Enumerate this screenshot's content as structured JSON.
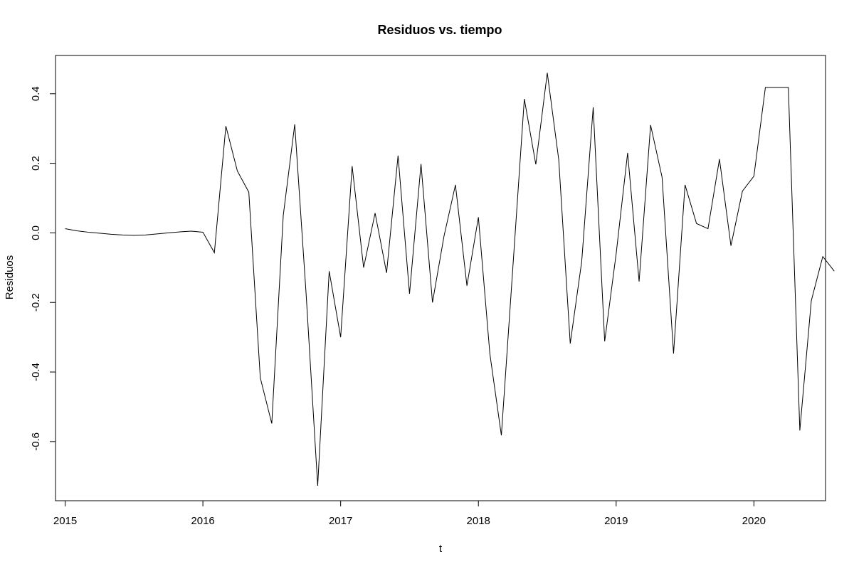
{
  "chart_data": {
    "type": "line",
    "title": "Residuos vs. tiempo",
    "xlabel": "t",
    "ylabel": "Residuos",
    "xlim": [
      2014.93,
      2020.52
    ],
    "ylim": [
      -0.77,
      0.51
    ],
    "x_ticks": [
      2015,
      2016,
      2017,
      2018,
      2019,
      2020
    ],
    "x_tick_labels": [
      "2015",
      "2016",
      "2017",
      "2018",
      "2019",
      "2020"
    ],
    "y_ticks": [
      -0.6,
      -0.4,
      -0.2,
      0.0,
      0.2,
      0.4
    ],
    "y_tick_labels": [
      "-0.6",
      "-0.4",
      "-0.2",
      "0.0",
      "0.2",
      "0.4"
    ],
    "grid": false,
    "legend": "none",
    "line_color": "#000000",
    "x_start": 2015,
    "x_step_months": 1,
    "series": [
      {
        "values": [
          0.012,
          0.006,
          0.002,
          -0.001,
          -0.004,
          -0.006,
          -0.007,
          -0.006,
          -0.003,
          0.0,
          0.003,
          0.005,
          0.002,
          -0.057,
          0.307,
          0.178,
          0.117,
          -0.417,
          -0.548,
          0.05,
          0.312,
          -0.18,
          -0.727,
          -0.11,
          -0.3,
          0.192,
          -0.1,
          0.057,
          -0.115,
          0.222,
          -0.175,
          0.198,
          -0.2,
          -0.01,
          0.138,
          -0.152,
          0.045,
          -0.348,
          -0.582,
          -0.1,
          0.385,
          0.197,
          0.46,
          0.21,
          -0.318,
          -0.082,
          0.361,
          -0.312,
          -0.06,
          0.23,
          -0.14,
          0.31,
          0.16,
          -0.347,
          0.138,
          0.027,
          0.012,
          0.212,
          -0.037,
          0.12,
          0.163,
          0.418,
          0.418,
          0.418,
          -0.568,
          -0.195,
          -0.068,
          -0.11
        ]
      }
    ]
  }
}
